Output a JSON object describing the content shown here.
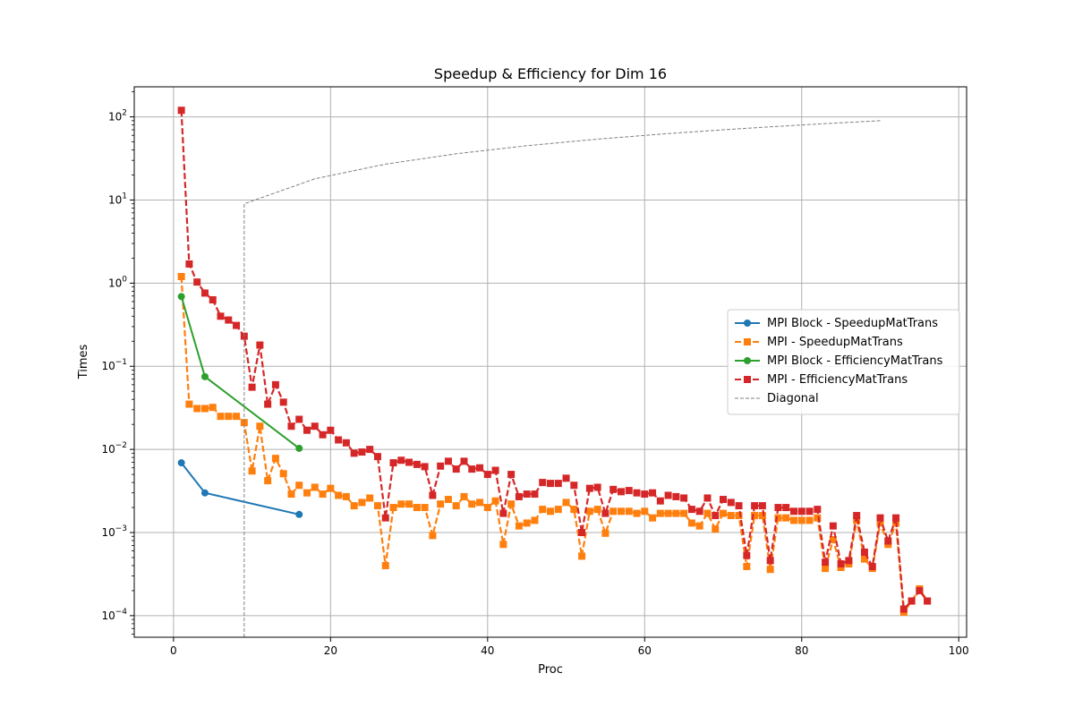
{
  "chart_data": {
    "type": "line",
    "title": "Speedup & Efficiency for Dim 16",
    "xlabel": "Proc",
    "ylabel": "Times",
    "xlim": [
      -5,
      101
    ],
    "ylim": [
      5.5e-05,
      230
    ],
    "yscale": "log",
    "grid": true,
    "legend_position": "center-right",
    "xticks": [
      0,
      20,
      40,
      60,
      80,
      100
    ],
    "yticks": [
      0.0001,
      0.001,
      0.01,
      0.1,
      1,
      10,
      100
    ],
    "ytick_exponents": [
      "−4",
      "−3",
      "−2",
      "−1",
      "0",
      "1",
      "2"
    ],
    "ytick_base": "10",
    "series": [
      {
        "name": "MPI Block - SpeedupMatTrans",
        "color": "#1f77b4",
        "marker": "circle",
        "linestyle": "solid",
        "x": [
          1,
          4,
          16
        ],
        "y": [
          0.0069,
          0.003,
          0.00165
        ]
      },
      {
        "name": "MPI - SpeedupMatTrans",
        "color": "#ff7f0e",
        "marker": "square",
        "linestyle": "dashed",
        "x": [
          1,
          2,
          3,
          4,
          5,
          6,
          7,
          8,
          9,
          10,
          11,
          12,
          13,
          14,
          15,
          16,
          17,
          18,
          19,
          20,
          21,
          22,
          23,
          24,
          25,
          26,
          27,
          28,
          29,
          30,
          31,
          32,
          33,
          34,
          35,
          36,
          37,
          38,
          39,
          40,
          41,
          42,
          43,
          44,
          45,
          46,
          47,
          48,
          49,
          50,
          51,
          52,
          53,
          54,
          55,
          56,
          57,
          58,
          59,
          60,
          61,
          62,
          63,
          64,
          65,
          66,
          67,
          68,
          69,
          70,
          71,
          72,
          73,
          74,
          75,
          76,
          77,
          78,
          79,
          80,
          81,
          82,
          83,
          84,
          85,
          86,
          87,
          88,
          89,
          90,
          91,
          92,
          93,
          94,
          95,
          96
        ],
        "y": [
          1.2,
          0.035,
          0.031,
          0.031,
          0.032,
          0.025,
          0.025,
          0.025,
          0.021,
          0.0055,
          0.019,
          0.0042,
          0.0078,
          0.0051,
          0.0029,
          0.0037,
          0.003,
          0.0035,
          0.0029,
          0.0034,
          0.0028,
          0.0027,
          0.0021,
          0.0023,
          0.0026,
          0.0021,
          0.0004,
          0.002,
          0.0022,
          0.0022,
          0.002,
          0.002,
          0.00092,
          0.0022,
          0.0025,
          0.0021,
          0.0027,
          0.0022,
          0.0023,
          0.002,
          0.0024,
          0.00072,
          0.0022,
          0.0012,
          0.0013,
          0.0014,
          0.0019,
          0.0018,
          0.0019,
          0.0023,
          0.0019,
          0.00052,
          0.0018,
          0.0019,
          0.00098,
          0.0018,
          0.0018,
          0.0018,
          0.0017,
          0.0018,
          0.0015,
          0.0017,
          0.0017,
          0.0017,
          0.0017,
          0.0013,
          0.0012,
          0.0017,
          0.0011,
          0.0017,
          0.0016,
          0.0016,
          0.00039,
          0.0016,
          0.0016,
          0.00036,
          0.0015,
          0.0015,
          0.0014,
          0.0014,
          0.0014,
          0.0015,
          0.00037,
          0.00082,
          0.00038,
          0.00042,
          0.0014,
          0.00048,
          0.00037,
          0.0013,
          0.00072,
          0.0013,
          0.00011,
          0.00015,
          0.00021,
          0.00015
        ]
      },
      {
        "name": "MPI Block - EfficiencyMatTrans",
        "color": "#2ca02c",
        "marker": "circle",
        "linestyle": "solid",
        "x": [
          1,
          4,
          16
        ],
        "y": [
          0.69,
          0.075,
          0.0103
        ]
      },
      {
        "name": "MPI - EfficiencyMatTrans",
        "color": "#d62728",
        "marker": "square",
        "linestyle": "dashed",
        "x": [
          1,
          2,
          3,
          4,
          5,
          6,
          7,
          8,
          9,
          10,
          11,
          12,
          13,
          14,
          15,
          16,
          17,
          18,
          19,
          20,
          21,
          22,
          23,
          24,
          25,
          26,
          27,
          28,
          29,
          30,
          31,
          32,
          33,
          34,
          35,
          36,
          37,
          38,
          39,
          40,
          41,
          42,
          43,
          44,
          45,
          46,
          47,
          48,
          49,
          50,
          51,
          52,
          53,
          54,
          55,
          56,
          57,
          58,
          59,
          60,
          61,
          62,
          63,
          64,
          65,
          66,
          67,
          68,
          69,
          70,
          71,
          72,
          73,
          74,
          75,
          76,
          77,
          78,
          79,
          80,
          81,
          82,
          83,
          84,
          85,
          86,
          87,
          88,
          89,
          90,
          91,
          92,
          93,
          94,
          95,
          96
        ],
        "y": [
          120,
          1.7,
          1.03,
          0.76,
          0.63,
          0.4,
          0.36,
          0.31,
          0.23,
          0.056,
          0.18,
          0.035,
          0.06,
          0.037,
          0.019,
          0.023,
          0.017,
          0.019,
          0.015,
          0.017,
          0.013,
          0.012,
          0.009,
          0.0093,
          0.01,
          0.0082,
          0.0015,
          0.0069,
          0.0074,
          0.007,
          0.0066,
          0.0062,
          0.0028,
          0.0063,
          0.0072,
          0.0058,
          0.0072,
          0.0058,
          0.006,
          0.005,
          0.0056,
          0.0017,
          0.005,
          0.0027,
          0.0029,
          0.0029,
          0.004,
          0.0039,
          0.0039,
          0.0045,
          0.0037,
          0.001,
          0.0034,
          0.0035,
          0.0017,
          0.0033,
          0.0031,
          0.0032,
          0.003,
          0.0029,
          0.003,
          0.0024,
          0.0028,
          0.0027,
          0.0026,
          0.0019,
          0.0018,
          0.0026,
          0.0016,
          0.0025,
          0.0023,
          0.0021,
          0.00053,
          0.0021,
          0.0021,
          0.00046,
          0.002,
          0.002,
          0.0018,
          0.0018,
          0.0018,
          0.0019,
          0.00044,
          0.0012,
          0.00042,
          0.00046,
          0.0016,
          0.00058,
          0.00039,
          0.0015,
          0.00079,
          0.0015,
          0.00012,
          0.00015,
          0.0002,
          0.00015
        ]
      },
      {
        "name": "Diagonal",
        "color": "#808080",
        "marker": "none",
        "linestyle": "dashed-thin",
        "x": [
          9,
          9,
          18,
          27,
          36,
          45,
          54,
          63,
          72,
          81,
          90
        ],
        "y": [
          5.5e-05,
          9,
          18,
          27,
          36,
          45,
          54,
          63,
          72,
          81,
          90
        ]
      }
    ]
  }
}
